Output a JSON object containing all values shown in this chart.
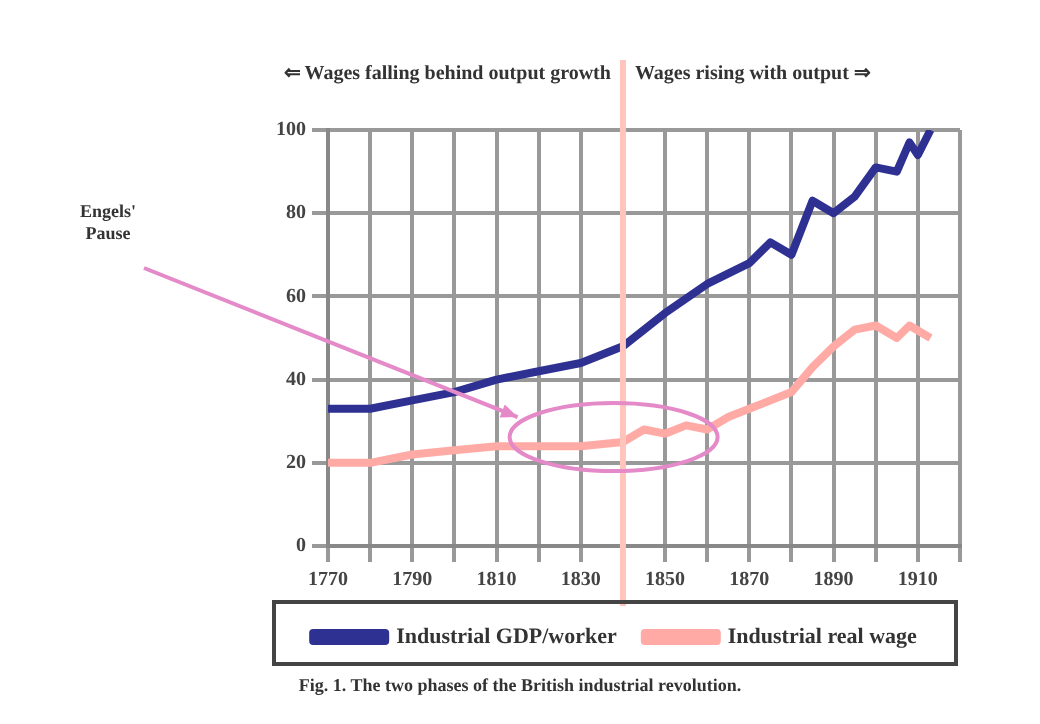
{
  "chart_data": {
    "type": "line",
    "annotations": [
      "⇐ Wages falling behind output growth",
      "Wages rising with output ⇒",
      "Engels' Pause",
      "Fig. 1. The two phases of the British industrial revolution."
    ],
    "series": [
      {
        "name": "Industrial GDP/worker",
        "color": "#2e3192",
        "x": [
          1770,
          1780,
          1790,
          1800,
          1810,
          1820,
          1830,
          1840,
          1850,
          1860,
          1870,
          1875,
          1880,
          1885,
          1890,
          1895,
          1900,
          1905,
          1908,
          1910,
          1913
        ],
        "values": [
          33,
          33,
          35,
          37,
          40,
          42,
          44,
          48,
          56,
          63,
          68,
          73,
          70,
          83,
          80,
          84,
          91,
          90,
          97,
          94,
          100
        ]
      },
      {
        "name": "Industrial real wage",
        "color": "#ffaaa5",
        "x": [
          1770,
          1780,
          1790,
          1800,
          1810,
          1820,
          1830,
          1840,
          1845,
          1850,
          1855,
          1860,
          1865,
          1870,
          1880,
          1885,
          1890,
          1895,
          1900,
          1905,
          1908,
          1913
        ],
        "values": [
          20,
          20,
          22,
          23,
          24,
          24,
          24,
          25,
          28,
          27,
          29,
          28,
          31,
          33,
          37,
          43,
          48,
          52,
          53,
          50,
          53,
          50
        ]
      }
    ],
    "xlim": [
      1770,
      1920
    ],
    "xticks": [
      {
        "value": 1770,
        "label": "1770"
      },
      {
        "value": 1780,
        "label": null
      },
      {
        "value": 1790,
        "label": "1790"
      },
      {
        "value": 1800,
        "label": null
      },
      {
        "value": 1810,
        "label": "1810"
      },
      {
        "value": 1820,
        "label": null
      },
      {
        "value": 1830,
        "label": "1830"
      },
      {
        "value": 1840,
        "label": null
      },
      {
        "value": 1850,
        "label": "1850"
      },
      {
        "value": 1860,
        "label": null
      },
      {
        "value": 1870,
        "label": "1870"
      },
      {
        "value": 1880,
        "label": null
      },
      {
        "value": 1890,
        "label": "1890"
      },
      {
        "value": 1900,
        "label": null
      },
      {
        "value": 1910,
        "label": "1910"
      },
      {
        "value": 1920,
        "label": null
      }
    ],
    "ylim": [
      0,
      100
    ],
    "yticks": [
      0,
      20,
      40,
      60,
      80,
      100
    ],
    "ref_lines": [
      {
        "axis": "x",
        "value": 1840,
        "color": "#ffc4bc"
      }
    ],
    "grid": true,
    "legend": "bottom",
    "marker": "none",
    "line_style": "solid"
  }
}
